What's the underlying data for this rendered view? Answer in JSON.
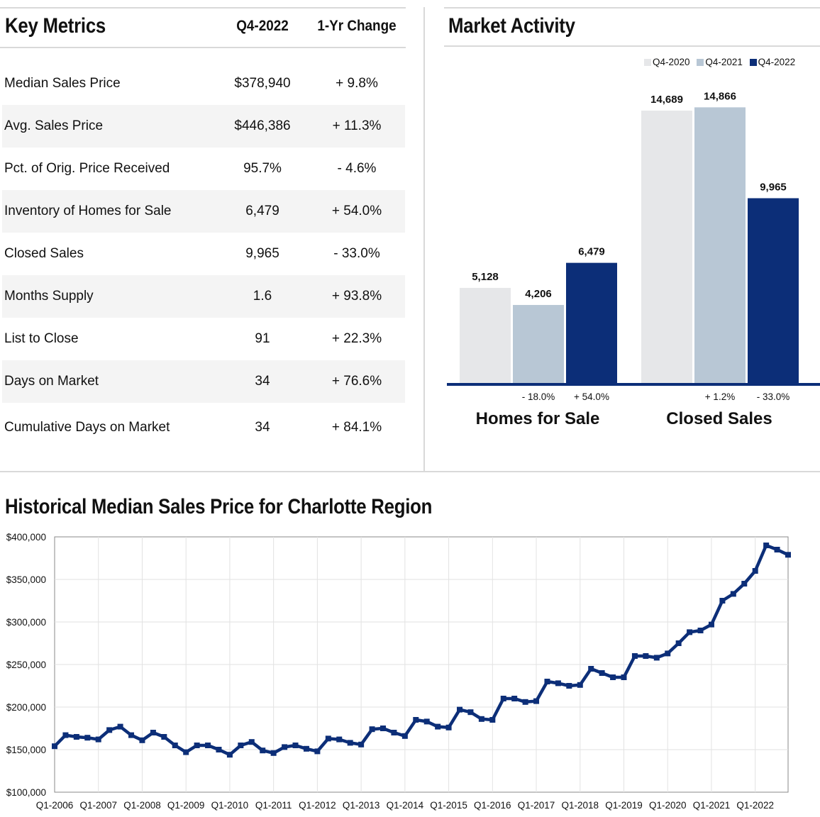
{
  "key_metrics": {
    "title": "Key Metrics",
    "col_value": "Q4-2022",
    "col_change": "1-Yr Change",
    "rows": [
      {
        "label": "Median Sales Price",
        "value": "$378,940",
        "change": "+ 9.8%"
      },
      {
        "label": "Avg. Sales Price",
        "value": "$446,386",
        "change": "+ 11.3%"
      },
      {
        "label": "Pct. of Orig. Price Received",
        "value": "95.7%",
        "change": "- 4.6%"
      },
      {
        "label": "Inventory of Homes for Sale",
        "value": "6,479",
        "change": "+ 54.0%"
      },
      {
        "label": "Closed Sales",
        "value": "9,965",
        "change": "- 33.0%"
      },
      {
        "label": "Months Supply",
        "value": "1.6",
        "change": "+ 93.8%"
      },
      {
        "label": "List to Close",
        "value": "91",
        "change": "+ 22.3%"
      },
      {
        "label": "Days on Market",
        "value": "34",
        "change": "+ 76.6%"
      },
      {
        "label": "Cumulative Days on Market",
        "value": "34",
        "change": "+ 84.1%"
      }
    ]
  },
  "market_activity_title": "Market Activity",
  "historical_title": "Historical Median Sales Price for Charlotte Region",
  "chart_data": [
    {
      "type": "bar",
      "title": "Market Activity",
      "categories": [
        "Homes for Sale",
        "Closed Sales"
      ],
      "series": [
        {
          "name": "Q4-2020",
          "color": "#e6e7e9",
          "values": [
            5128,
            14689
          ],
          "labels": [
            "5,128",
            "14,689"
          ]
        },
        {
          "name": "Q4-2021",
          "color": "#b8c7d5",
          "values": [
            4206,
            14866
          ],
          "labels": [
            "4,206",
            "14,866"
          ]
        },
        {
          "name": "Q4-2022",
          "color": "#0c2e78",
          "values": [
            6479,
            9965
          ],
          "labels": [
            "6,479",
            "9,965"
          ]
        }
      ],
      "changes": [
        [
          "- 18.0%",
          "+ 54.0%"
        ],
        [
          "+ 1.2%",
          "- 33.0%"
        ]
      ],
      "ylim": [
        0,
        15300
      ],
      "legend": "top-right",
      "grid": false
    },
    {
      "type": "line",
      "title": "Historical Median Sales Price for Charlotte Region",
      "xlabel": "",
      "ylabel": "",
      "color": "#0c2e78",
      "ylim": [
        100000,
        400000
      ],
      "y_ticks": [
        100000,
        150000,
        200000,
        250000,
        300000,
        350000,
        400000
      ],
      "y_tick_labels": [
        "$100,000",
        "$150,000",
        "$200,000",
        "$250,000",
        "$300,000",
        "$350,000",
        "$400,000"
      ],
      "x_tick_labels": [
        "Q1-2006",
        "Q1-2007",
        "Q1-2008",
        "Q1-2009",
        "Q1-2010",
        "Q1-2011",
        "Q1-2012",
        "Q1-2013",
        "Q1-2014",
        "Q1-2015",
        "Q1-2016",
        "Q1-2017",
        "Q1-2018",
        "Q1-2019",
        "Q1-2020",
        "Q1-2021",
        "Q1-2022"
      ],
      "x_start": "Q1-2006",
      "x_end": "Q4-2022",
      "grid": true,
      "values": [
        154000,
        167000,
        165000,
        164000,
        162000,
        173000,
        177000,
        167000,
        161000,
        170000,
        165000,
        155000,
        147000,
        155000,
        155000,
        150000,
        144000,
        155000,
        159000,
        149000,
        146000,
        153000,
        155000,
        151000,
        148000,
        163000,
        162000,
        158000,
        156000,
        174000,
        175000,
        170000,
        166000,
        185000,
        183000,
        177000,
        176000,
        197000,
        194000,
        186000,
        185000,
        210000,
        210000,
        206000,
        207000,
        230000,
        228000,
        225000,
        226000,
        245000,
        240000,
        235000,
        235000,
        260000,
        260000,
        258000,
        263000,
        275000,
        288000,
        290000,
        297000,
        325000,
        333000,
        345000,
        360000,
        390000,
        385000,
        378940
      ]
    }
  ]
}
